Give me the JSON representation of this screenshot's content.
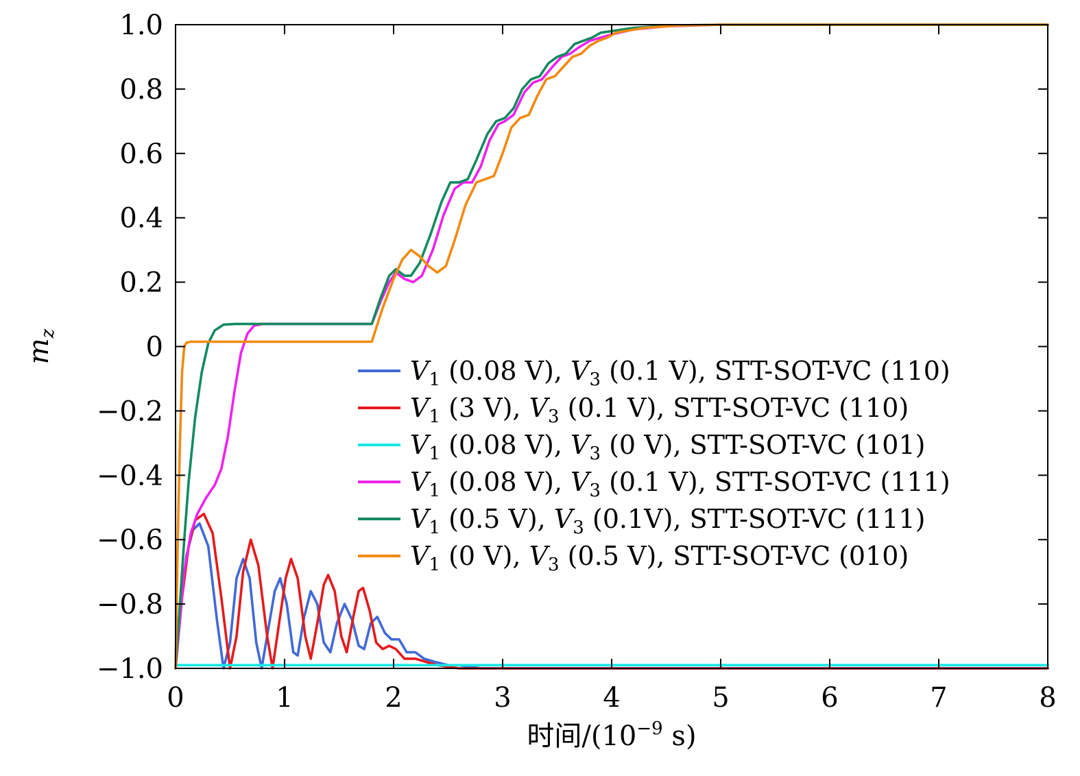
{
  "chart_data": {
    "type": "line",
    "xlabel": "时间/(10",
    "xlabel_exp": "−9",
    "xlabel_unit": " s)",
    "ylabel": "m",
    "ylabel_sub": "z",
    "xlim": [
      0,
      8
    ],
    "ylim": [
      -1.0,
      1.0
    ],
    "xticks": [
      0,
      1,
      2,
      3,
      4,
      5,
      6,
      7,
      8
    ],
    "xtick_labels": [
      "0",
      "1",
      "2",
      "3",
      "4",
      "5",
      "6",
      "7",
      "8"
    ],
    "yticks": [
      -1.0,
      -0.8,
      -0.6,
      -0.4,
      -0.2,
      0,
      0.2,
      0.4,
      0.6,
      0.8,
      1.0
    ],
    "ytick_labels": [
      "−1.0",
      "−0.8",
      "−0.6",
      "−0.4",
      "−0.2",
      "0",
      "0.2",
      "0.4",
      "0.6",
      "0.8",
      "1.0"
    ],
    "grid": false,
    "legend_position": "center-right",
    "series": [
      {
        "name": "V1 (0.08 V), V3 (0.1 V), STT-SOT-VC (110)",
        "legend": {
          "a": "V",
          "a_sub": "1",
          "a_val": " (0.08 V), ",
          "b": "V",
          "b_sub": "3",
          "b_val": " (0.1 V), STT-SOT-VC (110)"
        },
        "color": "#4169d8",
        "points": [
          [
            0,
            -1.0
          ],
          [
            0.05,
            -0.8
          ],
          [
            0.1,
            -0.65
          ],
          [
            0.16,
            -0.57
          ],
          [
            0.22,
            -0.55
          ],
          [
            0.3,
            -0.62
          ],
          [
            0.38,
            -0.85
          ],
          [
            0.44,
            -1.0
          ],
          [
            0.5,
            -0.92
          ],
          [
            0.56,
            -0.72
          ],
          [
            0.62,
            -0.66
          ],
          [
            0.68,
            -0.72
          ],
          [
            0.74,
            -0.92
          ],
          [
            0.79,
            -1.0
          ],
          [
            0.85,
            -0.88
          ],
          [
            0.91,
            -0.76
          ],
          [
            0.96,
            -0.72
          ],
          [
            1.02,
            -0.8
          ],
          [
            1.08,
            -0.95
          ],
          [
            1.12,
            -0.96
          ],
          [
            1.18,
            -0.84
          ],
          [
            1.24,
            -0.76
          ],
          [
            1.3,
            -0.8
          ],
          [
            1.36,
            -0.92
          ],
          [
            1.42,
            -0.95
          ],
          [
            1.48,
            -0.86
          ],
          [
            1.55,
            -0.8
          ],
          [
            1.62,
            -0.85
          ],
          [
            1.68,
            -0.93
          ],
          [
            1.73,
            -0.94
          ],
          [
            1.79,
            -0.86
          ],
          [
            1.85,
            -0.84
          ],
          [
            1.92,
            -0.89
          ],
          [
            1.98,
            -0.91
          ],
          [
            2.05,
            -0.91
          ],
          [
            2.12,
            -0.95
          ],
          [
            2.2,
            -0.95
          ],
          [
            2.28,
            -0.97
          ],
          [
            2.38,
            -0.98
          ],
          [
            2.5,
            -0.99
          ],
          [
            2.6,
            -0.99
          ],
          [
            2.8,
            -1.0
          ],
          [
            3.2,
            -1.0
          ],
          [
            8,
            -1.0
          ]
        ]
      },
      {
        "name": "V1 (3 V), V3 (0.1 V), STT-SOT-VC (110)",
        "legend": {
          "a": "V",
          "a_sub": "1",
          "a_val": " (3 V), ",
          "b": "V",
          "b_sub": "3",
          "b_val": " (0.1 V), STT-SOT-VC (110)"
        },
        "color": "#e41a1c",
        "points": [
          [
            0,
            -1.0
          ],
          [
            0.06,
            -0.78
          ],
          [
            0.12,
            -0.62
          ],
          [
            0.18,
            -0.54
          ],
          [
            0.26,
            -0.52
          ],
          [
            0.34,
            -0.58
          ],
          [
            0.42,
            -0.78
          ],
          [
            0.5,
            -1.0
          ],
          [
            0.56,
            -0.9
          ],
          [
            0.62,
            -0.7
          ],
          [
            0.69,
            -0.6
          ],
          [
            0.76,
            -0.68
          ],
          [
            0.84,
            -0.9
          ],
          [
            0.89,
            -1.0
          ],
          [
            0.95,
            -0.86
          ],
          [
            1.01,
            -0.72
          ],
          [
            1.06,
            -0.66
          ],
          [
            1.12,
            -0.72
          ],
          [
            1.19,
            -0.9
          ],
          [
            1.24,
            -0.97
          ],
          [
            1.3,
            -0.86
          ],
          [
            1.36,
            -0.74
          ],
          [
            1.4,
            -0.71
          ],
          [
            1.46,
            -0.76
          ],
          [
            1.52,
            -0.9
          ],
          [
            1.57,
            -0.95
          ],
          [
            1.63,
            -0.84
          ],
          [
            1.68,
            -0.76
          ],
          [
            1.72,
            -0.75
          ],
          [
            1.78,
            -0.82
          ],
          [
            1.84,
            -0.92
          ],
          [
            1.9,
            -0.94
          ],
          [
            1.96,
            -0.93
          ],
          [
            2.02,
            -0.94
          ],
          [
            2.1,
            -0.97
          ],
          [
            2.2,
            -0.97
          ],
          [
            2.3,
            -0.98
          ],
          [
            2.4,
            -0.99
          ],
          [
            2.6,
            -1.0
          ],
          [
            8,
            -1.0
          ]
        ]
      },
      {
        "name": "V1 (0.08 V), V3 (0 V), STT-SOT-VC (101)",
        "legend": {
          "a": "V",
          "a_sub": "1",
          "a_val": " (0.08 V), ",
          "b": "V",
          "b_sub": "3",
          "b_val": " (0 V), STT-SOT-VC (101)"
        },
        "color": "#17e6e6",
        "points": [
          [
            0,
            -0.99
          ],
          [
            8,
            -0.99
          ]
        ]
      },
      {
        "name": "V1 (0.08 V), V3 (0.1 V), STT-SOT-VC (111)",
        "legend": {
          "a": "V",
          "a_sub": "1",
          "a_val": " (0.08 V), ",
          "b": "V",
          "b_sub": "3",
          "b_val": " (0.1 V), STT-SOT-VC (111)"
        },
        "color": "#ee22ee",
        "points": [
          [
            0,
            -1.0
          ],
          [
            0.04,
            -0.85
          ],
          [
            0.08,
            -0.7
          ],
          [
            0.14,
            -0.58
          ],
          [
            0.2,
            -0.52
          ],
          [
            0.28,
            -0.47
          ],
          [
            0.36,
            -0.43
          ],
          [
            0.42,
            -0.38
          ],
          [
            0.48,
            -0.28
          ],
          [
            0.54,
            -0.14
          ],
          [
            0.6,
            -0.02
          ],
          [
            0.66,
            0.04
          ],
          [
            0.72,
            0.065
          ],
          [
            0.8,
            0.07
          ],
          [
            1.8,
            0.07
          ],
          [
            1.88,
            0.14
          ],
          [
            1.96,
            0.2
          ],
          [
            2.02,
            0.23
          ],
          [
            2.1,
            0.21
          ],
          [
            2.18,
            0.2
          ],
          [
            2.26,
            0.22
          ],
          [
            2.36,
            0.3
          ],
          [
            2.46,
            0.41
          ],
          [
            2.56,
            0.49
          ],
          [
            2.64,
            0.51
          ],
          [
            2.72,
            0.51
          ],
          [
            2.8,
            0.56
          ],
          [
            2.88,
            0.64
          ],
          [
            2.96,
            0.69
          ],
          [
            3.02,
            0.7
          ],
          [
            3.1,
            0.72
          ],
          [
            3.2,
            0.79
          ],
          [
            3.28,
            0.82
          ],
          [
            3.36,
            0.83
          ],
          [
            3.46,
            0.87
          ],
          [
            3.54,
            0.9
          ],
          [
            3.62,
            0.91
          ],
          [
            3.7,
            0.93
          ],
          [
            3.8,
            0.95
          ],
          [
            3.9,
            0.96
          ],
          [
            4.0,
            0.97
          ],
          [
            4.2,
            0.985
          ],
          [
            4.5,
            0.995
          ],
          [
            5,
            1.0
          ],
          [
            8,
            1.0
          ]
        ]
      },
      {
        "name": "V1 (0.5 V), V3 (0.1V), STT-SOT-VC (111)",
        "legend": {
          "a": "V",
          "a_sub": "1",
          "a_val": " (0.5 V), ",
          "b": "V",
          "b_sub": "3",
          "b_val": " (0.1V), STT-SOT-VC (111)"
        },
        "color": "#138a5f",
        "points": [
          [
            0,
            -1.0
          ],
          [
            0.04,
            -0.8
          ],
          [
            0.08,
            -0.6
          ],
          [
            0.12,
            -0.42
          ],
          [
            0.18,
            -0.22
          ],
          [
            0.24,
            -0.08
          ],
          [
            0.3,
            0.01
          ],
          [
            0.36,
            0.05
          ],
          [
            0.44,
            0.068
          ],
          [
            0.55,
            0.07
          ],
          [
            1.8,
            0.07
          ],
          [
            1.88,
            0.15
          ],
          [
            1.96,
            0.22
          ],
          [
            2.02,
            0.24
          ],
          [
            2.1,
            0.22
          ],
          [
            2.16,
            0.22
          ],
          [
            2.24,
            0.26
          ],
          [
            2.34,
            0.35
          ],
          [
            2.44,
            0.45
          ],
          [
            2.52,
            0.51
          ],
          [
            2.6,
            0.51
          ],
          [
            2.68,
            0.52
          ],
          [
            2.76,
            0.58
          ],
          [
            2.86,
            0.66
          ],
          [
            2.94,
            0.7
          ],
          [
            3.02,
            0.71
          ],
          [
            3.1,
            0.74
          ],
          [
            3.18,
            0.8
          ],
          [
            3.26,
            0.83
          ],
          [
            3.34,
            0.84
          ],
          [
            3.42,
            0.88
          ],
          [
            3.5,
            0.9
          ],
          [
            3.58,
            0.91
          ],
          [
            3.66,
            0.94
          ],
          [
            3.74,
            0.95
          ],
          [
            3.82,
            0.96
          ],
          [
            3.9,
            0.975
          ],
          [
            4.0,
            0.98
          ],
          [
            4.2,
            0.99
          ],
          [
            4.5,
            0.997
          ],
          [
            5,
            1.0
          ],
          [
            8,
            1.0
          ]
        ]
      },
      {
        "name": "V1 (0 V), V3 (0.5 V), STT-SOT-VC (010)",
        "legend": {
          "a": "V",
          "a_sub": "1",
          "a_val": " (0 V), ",
          "b": "V",
          "b_sub": "3",
          "b_val": " (0.5 V), STT-SOT-VC (010)"
        },
        "color": "#f28a10",
        "points": [
          [
            0,
            -1.0
          ],
          [
            0.02,
            -0.6
          ],
          [
            0.04,
            -0.3
          ],
          [
            0.06,
            -0.08
          ],
          [
            0.08,
            0.0
          ],
          [
            0.1,
            0.012
          ],
          [
            0.14,
            0.015
          ],
          [
            1.8,
            0.015
          ],
          [
            1.9,
            0.12
          ],
          [
            2.0,
            0.21
          ],
          [
            2.08,
            0.27
          ],
          [
            2.16,
            0.3
          ],
          [
            2.24,
            0.28
          ],
          [
            2.32,
            0.25
          ],
          [
            2.4,
            0.23
          ],
          [
            2.48,
            0.25
          ],
          [
            2.56,
            0.33
          ],
          [
            2.66,
            0.44
          ],
          [
            2.76,
            0.51
          ],
          [
            2.84,
            0.52
          ],
          [
            2.92,
            0.53
          ],
          [
            3.0,
            0.6
          ],
          [
            3.08,
            0.68
          ],
          [
            3.16,
            0.71
          ],
          [
            3.24,
            0.72
          ],
          [
            3.32,
            0.78
          ],
          [
            3.4,
            0.83
          ],
          [
            3.48,
            0.84
          ],
          [
            3.56,
            0.87
          ],
          [
            3.64,
            0.9
          ],
          [
            3.72,
            0.91
          ],
          [
            3.8,
            0.935
          ],
          [
            3.88,
            0.95
          ],
          [
            3.96,
            0.96
          ],
          [
            4.04,
            0.975
          ],
          [
            4.12,
            0.98
          ],
          [
            4.3,
            0.99
          ],
          [
            4.6,
            0.997
          ],
          [
            5,
            1.0
          ],
          [
            8,
            1.0
          ]
        ]
      }
    ]
  }
}
